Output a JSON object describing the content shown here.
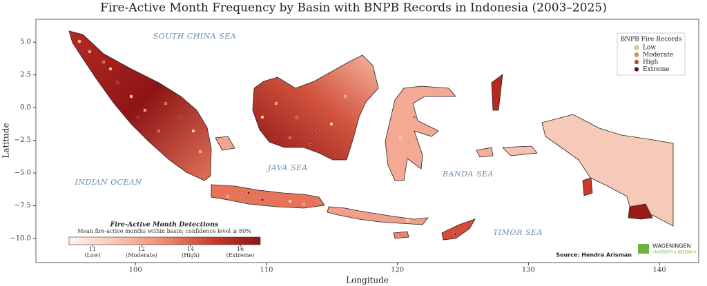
{
  "title": "Fire-Active Month Frequency by Basin with BNPB Records in Indonesia (2003–2025)",
  "xlabel": "Longitude",
  "ylabel": "Latitude",
  "xlim": [
    92.4,
    143
  ],
  "ylim": [
    -11.85,
    6.75
  ],
  "xticks": [
    100,
    110,
    120,
    130,
    140
  ],
  "yticks": [
    {
      "value": 5,
      "label": "5.0"
    },
    {
      "value": 2.5,
      "label": "2.5"
    },
    {
      "value": 0,
      "label": "0.0"
    },
    {
      "value": -2.5,
      "label": "−2.5"
    },
    {
      "value": -5,
      "label": "−5.0"
    },
    {
      "value": -7.5,
      "label": "−7.5"
    },
    {
      "value": -10,
      "label": "−10.0"
    }
  ],
  "sea_labels": [
    "SOUTH CHINA SEA",
    "INDIAN OCEAN",
    "JAVA SEA",
    "BANDA SEA",
    "TIMOR SEA"
  ],
  "legend": {
    "title": "BNPB Fire Records",
    "items": [
      {
        "label": "Low",
        "color": "#f3c66f"
      },
      {
        "label": "Moderate",
        "color": "#ee8f54"
      },
      {
        "label": "High",
        "color": "#d2442c"
      },
      {
        "label": "Extreme",
        "color": "#6b0a0a"
      }
    ]
  },
  "colorbar": {
    "title": "Fire-Active Month Detections",
    "subtitle": "Mean fire-active months within basin; confidence level ≥ 80%",
    "colors": [
      "#fff5f0",
      "#fcc5b0",
      "#f08a6c",
      "#cc3a2a",
      "#8e1515"
    ],
    "ticks": [
      11,
      12,
      14,
      16
    ],
    "tick_labels": [
      "(Low)",
      "(Moderate)",
      "(High)",
      "(Extreme)"
    ]
  },
  "source": "Source: Hendra Arisman",
  "logo": {
    "name": "WAGENINGEN",
    "subtitle": "UNIVERSITY & RESEARCH"
  }
}
